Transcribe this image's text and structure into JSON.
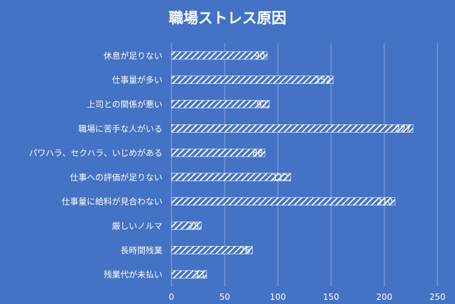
{
  "chart_data": {
    "type": "bar",
    "orientation": "horizontal",
    "title": "職場ストレス原因",
    "categories": [
      "休息が足りない",
      "仕事量が多い",
      "上司との関係が悪い",
      "職場に苦手な人がいる",
      "パワハラ、セクハラ、いじめがある",
      "仕事への評価が足りない",
      "仕事量に給料が見合わない",
      "厳しいノルマ",
      "長時間残業",
      "残業代が未払い"
    ],
    "values": [
      90,
      152,
      92,
      227,
      88,
      112,
      210,
      28,
      76,
      33
    ],
    "xlim": [
      0,
      250
    ],
    "xticks": [
      0,
      50,
      100,
      150,
      200,
      250
    ],
    "grid": "vertical",
    "legend": "none",
    "data_labels": true,
    "bar_fill": "white diagonal hatch",
    "colors": {
      "background": "#4472c4",
      "text": "#ffffff",
      "gridline": "#8eaadb"
    }
  }
}
